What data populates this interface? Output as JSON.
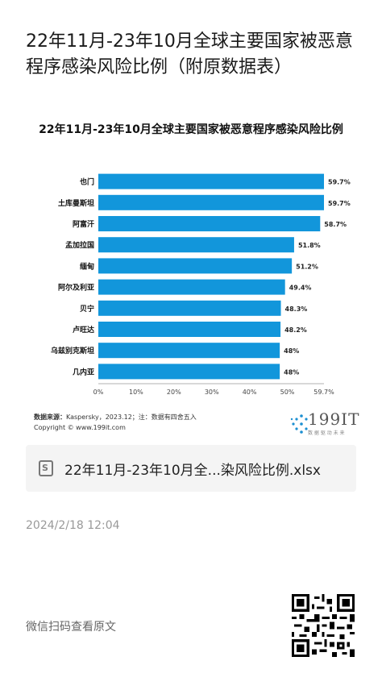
{
  "article": {
    "title": "22年11月-23年10月全球主要国家被恶意程序感染风险比例（附原数据表）",
    "attachment_name": "22年11月-23年10月全...染风险比例.xlsx",
    "date": "2024/2/18 12:04",
    "read_original": "微信扫码查看原文"
  },
  "source": {
    "label": "数据来源：",
    "text": "Kaspersky，2023.12；注：数据有四舍五入",
    "copyright": "Copyright © www.199it.com"
  },
  "logo": {
    "text": "199IT",
    "subtitle": "数 据 驱 动 未 来"
  },
  "colors": {
    "bar": "#1296db",
    "text": "#111111"
  },
  "chart_data": {
    "type": "bar",
    "orientation": "horizontal",
    "title": "22年11月-23年10月全球主要国家被恶意程序感染风险比例",
    "categories": [
      "也门",
      "土库曼斯坦",
      "阿富汗",
      "孟加拉国",
      "缅甸",
      "阿尔及利亚",
      "贝宁",
      "卢旺达",
      "乌兹别克斯坦",
      "几内亚"
    ],
    "values": [
      59.7,
      59.7,
      58.7,
      51.8,
      51.2,
      49.4,
      48.3,
      48.2,
      48,
      48
    ],
    "value_labels": [
      "59.7%",
      "59.7%",
      "58.7%",
      "51.8%",
      "51.2%",
      "49.4%",
      "48.3%",
      "48.2%",
      "48%",
      "48%"
    ],
    "xlim": [
      0,
      59.7
    ],
    "xticks": [
      "0%",
      "10%",
      "20%",
      "30%",
      "40%",
      "50%",
      "59.7%"
    ],
    "xtick_values": [
      0,
      10,
      20,
      30,
      40,
      50,
      59.7
    ],
    "grid": false,
    "legend": "none"
  }
}
